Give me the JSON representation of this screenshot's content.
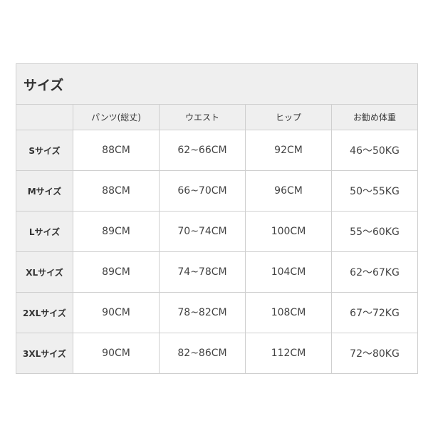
{
  "title": "サイズ",
  "columns": [
    "",
    "パンツ(総丈)",
    "ウエスト",
    "ヒップ",
    "お勧め体重"
  ],
  "rows": [
    {
      "size": "Sサイズ",
      "length": "88CM",
      "waist": "62~66CM",
      "hip": "92CM",
      "weight": "46～50KG"
    },
    {
      "size": "Mサイズ",
      "length": "88CM",
      "waist": "66~70CM",
      "hip": "96CM",
      "weight": "50～55KG"
    },
    {
      "size": "Lサイズ",
      "length": "89CM",
      "waist": "70~74CM",
      "hip": "100CM",
      "weight": "55～60KG"
    },
    {
      "size": "XLサイズ",
      "length": "89CM",
      "waist": "74~78CM",
      "hip": "104CM",
      "weight": "62～67KG"
    },
    {
      "size": "2XLサイズ",
      "length": "90CM",
      "waist": "78~82CM",
      "hip": "108CM",
      "weight": "67～72KG"
    },
    {
      "size": "3XLサイズ",
      "length": "90CM",
      "waist": "82~86CM",
      "hip": "112CM",
      "weight": "72～80KG"
    }
  ]
}
